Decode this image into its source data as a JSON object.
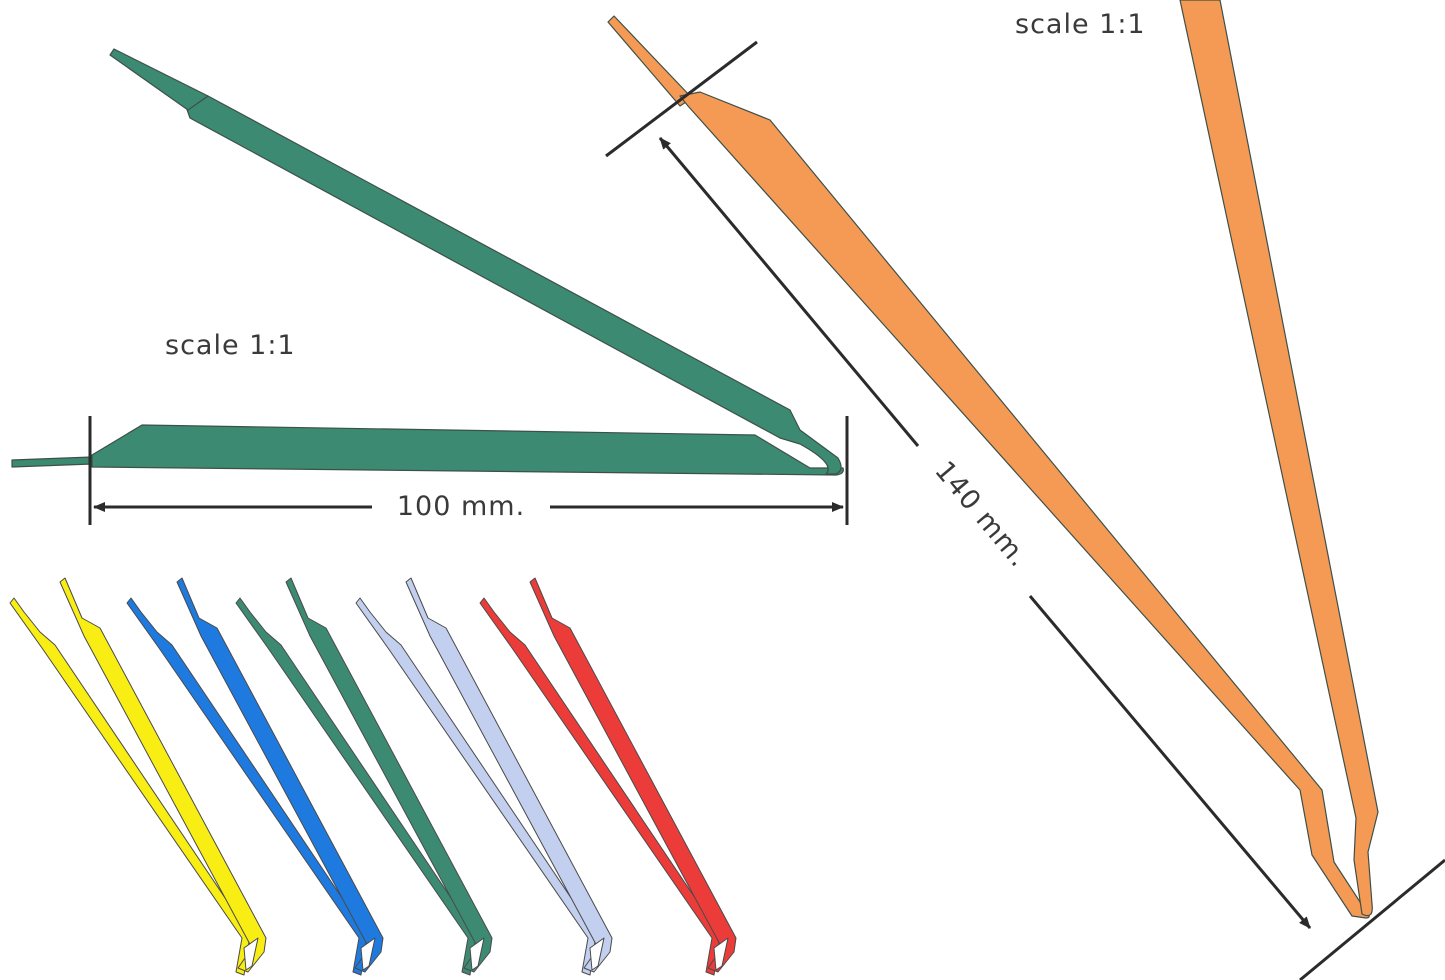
{
  "labels": {
    "scale_left": "scale 1:1",
    "scale_right": "scale 1:1",
    "dim_100": "100 mm.",
    "dim_140": "140 mm."
  },
  "colors": {
    "green": "#3c8a72",
    "orange": "#f59a55",
    "yellow": "#f9ee14",
    "blue": "#1f7ae0",
    "green_small": "#3c8a72",
    "light_blue": "#c3cfee",
    "red": "#ec3c3a"
  },
  "color_strips": [
    {
      "name": "yellow",
      "color_key": "yellow"
    },
    {
      "name": "blue",
      "color_key": "blue"
    },
    {
      "name": "green",
      "color_key": "green_small"
    },
    {
      "name": "light-blue",
      "color_key": "light_blue"
    },
    {
      "name": "red",
      "color_key": "red"
    }
  ]
}
